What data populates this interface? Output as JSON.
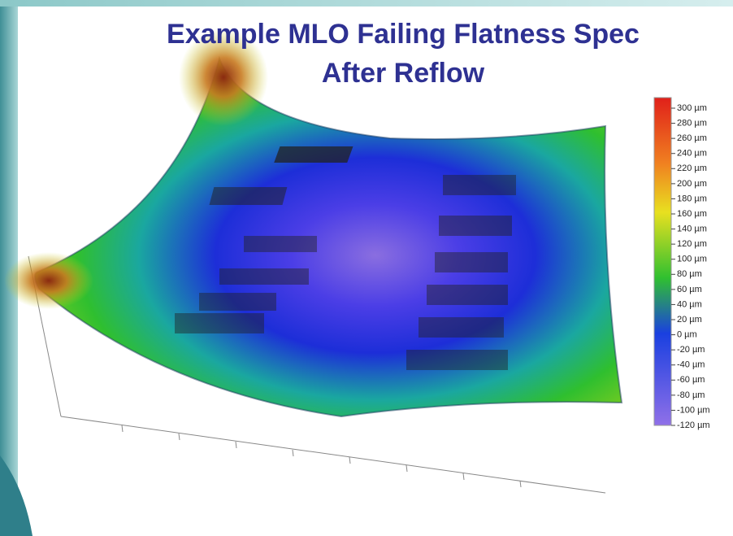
{
  "title": [
    "Example MLO Failing Flatness Spec",
    "After Reflow"
  ],
  "colorbar": {
    "labels": [
      "300 µm",
      "280 µm",
      "260 µm",
      "240 µm",
      "220 µm",
      "200 µm",
      "180 µm",
      "160 µm",
      "140 µm",
      "120 µm",
      "100 µm",
      "80 µm",
      "60 µm",
      "40 µm",
      "20 µm",
      "0 µm",
      "-20 µm",
      "-40 µm",
      "-60 µm",
      "-80 µm",
      "-100 µm",
      "-120 µm"
    ]
  }
}
